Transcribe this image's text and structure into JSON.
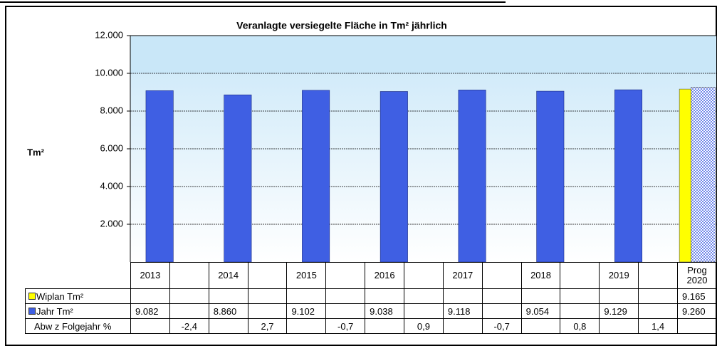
{
  "chart_data": {
    "type": "bar",
    "title": "Veranlagte versiegelte Fläche in Tm² jährlich",
    "y_label": "Tm²",
    "categories": [
      "2013",
      null,
      "2014",
      null,
      "2015",
      null,
      "2016",
      null,
      "2017",
      null,
      "2018",
      null,
      "2019",
      null,
      "Prog 2020"
    ],
    "series": [
      {
        "name": "Wiplan Tm²",
        "color": "#ffff00",
        "values": [
          null,
          null,
          null,
          null,
          null,
          null,
          null,
          null,
          null,
          null,
          null,
          null,
          null,
          null,
          9165
        ],
        "value_labels": [
          null,
          null,
          null,
          null,
          null,
          null,
          null,
          null,
          null,
          null,
          null,
          null,
          null,
          null,
          "9.165"
        ]
      },
      {
        "name": "Jahr Tm²",
        "color": "#3f5fe3",
        "values": [
          9082,
          null,
          8860,
          null,
          9102,
          null,
          9038,
          null,
          9118,
          null,
          9054,
          null,
          9129,
          null,
          9260
        ],
        "value_labels": [
          "9.082",
          null,
          "8.860",
          null,
          "9.102",
          null,
          "9.038",
          null,
          "9.118",
          null,
          "9.054",
          null,
          "9.129",
          null,
          "9.260"
        ]
      },
      {
        "name": "Abw z Folgejahr %",
        "values": [
          null,
          -2.4,
          null,
          2.7,
          null,
          -0.7,
          null,
          0.9,
          null,
          -0.7,
          null,
          0.8,
          null,
          1.4,
          null
        ],
        "value_labels": [
          null,
          "-2,4",
          null,
          "2,7",
          null,
          "-0,7",
          null,
          "0,9",
          null,
          "-0,7",
          null,
          "0,8",
          null,
          "1,4",
          null
        ]
      }
    ],
    "ylim": [
      0,
      12000
    ],
    "yticks": [
      {
        "value": 2000,
        "label": "2.000"
      },
      {
        "value": 4000,
        "label": "4.000"
      },
      {
        "value": 6000,
        "label": "6.000"
      },
      {
        "value": 8000,
        "label": "8.000"
      },
      {
        "value": 10000,
        "label": "10.000"
      },
      {
        "value": 12000,
        "label": "12.000"
      }
    ],
    "grid": true
  }
}
